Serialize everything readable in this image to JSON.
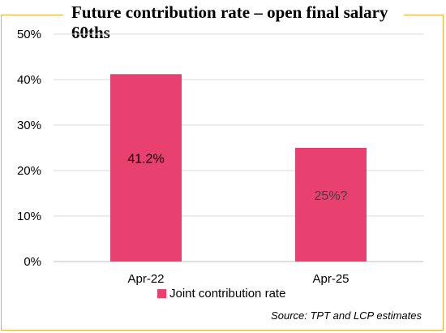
{
  "chart_data": {
    "type": "bar",
    "title": "Future contribution rate – open final salary 60ths",
    "categories": [
      "Apr-22",
      "Apr-25"
    ],
    "series": [
      {
        "name": "Joint contribution rate",
        "values": [
          41.2,
          25
        ],
        "labels": [
          "41.2%",
          "25%?"
        ],
        "color": "#e8416f"
      }
    ],
    "yticks": [
      "0%",
      "10%",
      "20%",
      "30%",
      "40%",
      "50%"
    ],
    "ylim": [
      0,
      50
    ],
    "grid": true,
    "legend": "bottom",
    "source": "Source: TPT and LCP estimates"
  }
}
